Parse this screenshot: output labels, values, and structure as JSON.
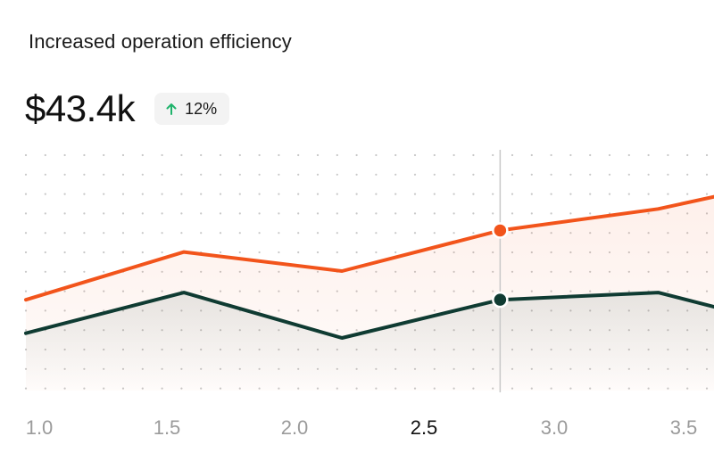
{
  "card": {
    "title": "Increased operation efficiency",
    "value": "$43.4k",
    "change": "12%",
    "change_icon": "arrow-up-icon",
    "change_color": "#1fb36b"
  },
  "colors": {
    "series_a": "#f2541b",
    "series_b": "#0f3b32",
    "crosshair": "#c8c8c8",
    "dot_grid": "#c7c7c7",
    "tick_default": "#9b9b9b",
    "tick_active": "#111111"
  },
  "chart_data": {
    "type": "line",
    "x_tick_labels": [
      "1.0",
      "1.5",
      "2.0",
      "2.5",
      "3.0",
      "3.5"
    ],
    "x_ticks": [
      1.0,
      1.5,
      2.0,
      2.5,
      3.0,
      3.5
    ],
    "active_tick": "2.5",
    "xlim": [
      1.0,
      3.5
    ],
    "ylim": [
      0,
      100
    ],
    "x": [
      1.0,
      1.6,
      2.2,
      2.8,
      3.4,
      3.65
    ],
    "series": [
      {
        "values": [
          38,
          58,
          50,
          67,
          76,
          82
        ],
        "color": "#f2541b",
        "area_fill": true
      },
      {
        "values": [
          24,
          41,
          22,
          38,
          41,
          34
        ],
        "color": "#0f3b32",
        "area_fill": true
      }
    ],
    "crosshair_x": 2.8,
    "grid": "dotted",
    "legend": "none"
  }
}
